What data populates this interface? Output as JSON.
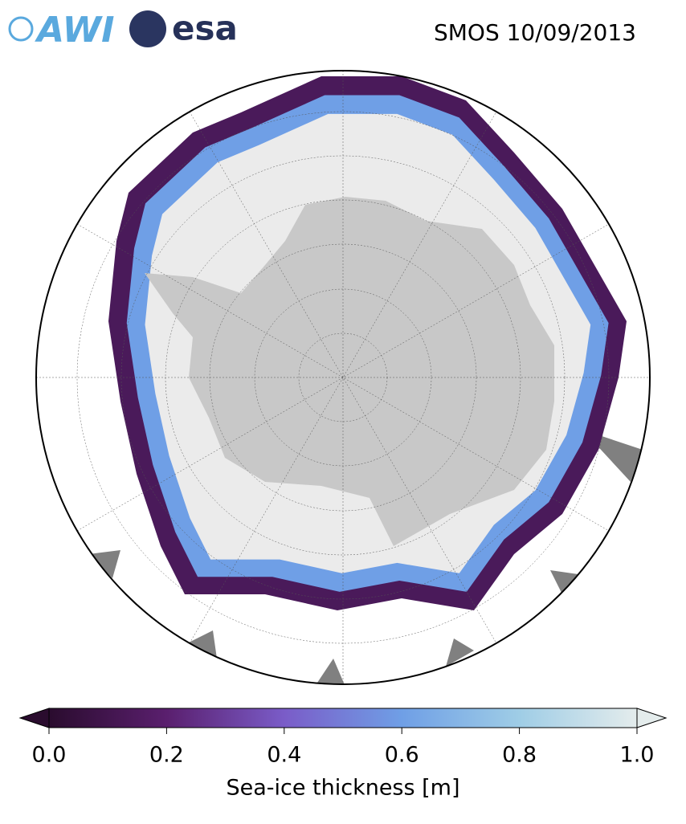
{
  "header": {
    "logos": [
      "AWI",
      "esa"
    ],
    "title": "SMOS 10/09/2013"
  },
  "colorbar": {
    "label": "Sea-ice thickness [m]",
    "lim": [
      0,
      1
    ],
    "ticks": [
      {
        "value": 0,
        "label": "0.0"
      },
      {
        "value": 0.2,
        "label": "0.2"
      },
      {
        "value": 0.4,
        "label": "0.4"
      },
      {
        "value": 0.6,
        "label": "0.6"
      },
      {
        "value": 0.8,
        "label": "0.8"
      },
      {
        "value": 1,
        "label": "1.0"
      }
    ],
    "colors": [
      "#2a0c2e",
      "#5a1f6e",
      "#7a5cc8",
      "#6f9fe6",
      "#9fcde6",
      "#e4ecec"
    ]
  }
}
